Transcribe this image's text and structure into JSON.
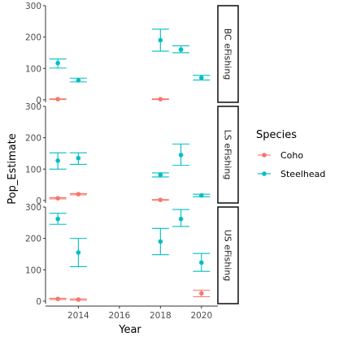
{
  "chart_data": {
    "type": "scatter",
    "subtype": "point-with-errorbars, faceted",
    "xlabel": "Year",
    "ylabel": "Pop_Estimate",
    "xlim": [
      2012.4,
      2020.8
    ],
    "ylim": [
      -8,
      300
    ],
    "x_ticks": [
      2014,
      2016,
      2018,
      2020
    ],
    "y_ticks": [
      0,
      100,
      200,
      300
    ],
    "grid": false,
    "legend": {
      "title": "Species",
      "placement": "right",
      "entries": [
        {
          "name": "Coho",
          "color": "#F8766D"
        },
        {
          "name": "Steelhead",
          "color": "#00BFC4"
        }
      ]
    },
    "panels": [
      {
        "label": "BC eFishing",
        "series": [
          {
            "name": "Coho",
            "points": [
              {
                "x": 2013,
                "y": 2,
                "lo": 1,
                "hi": 3
              },
              {
                "x": 2018,
                "y": 2,
                "lo": 1,
                "hi": 3
              }
            ]
          },
          {
            "name": "Steelhead",
            "points": [
              {
                "x": 2013,
                "y": 117,
                "lo": 101,
                "hi": 130
              },
              {
                "x": 2014,
                "y": 62,
                "lo": 57,
                "hi": 69
              },
              {
                "x": 2018,
                "y": 190,
                "lo": 155,
                "hi": 225
              },
              {
                "x": 2019,
                "y": 160,
                "lo": 150,
                "hi": 172
              },
              {
                "x": 2020,
                "y": 70,
                "lo": 63,
                "hi": 78
              }
            ]
          }
        ]
      },
      {
        "label": "LS eFishing",
        "series": [
          {
            "name": "Coho",
            "points": [
              {
                "x": 2013,
                "y": 7,
                "lo": 5,
                "hi": 9
              },
              {
                "x": 2014,
                "y": 20,
                "lo": 18,
                "hi": 22
              },
              {
                "x": 2018,
                "y": 2,
                "lo": 1,
                "hi": 3
              }
            ]
          },
          {
            "name": "Steelhead",
            "points": [
              {
                "x": 2013,
                "y": 127,
                "lo": 100,
                "hi": 152
              },
              {
                "x": 2014,
                "y": 135,
                "lo": 115,
                "hi": 152
              },
              {
                "x": 2018,
                "y": 82,
                "lo": 75,
                "hi": 88
              },
              {
                "x": 2019,
                "y": 145,
                "lo": 112,
                "hi": 180
              },
              {
                "x": 2020,
                "y": 16,
                "lo": 12,
                "hi": 20
              }
            ]
          }
        ]
      },
      {
        "label": "US eFishing",
        "series": [
          {
            "name": "Coho",
            "points": [
              {
                "x": 2013,
                "y": 7,
                "lo": 5,
                "hi": 9
              },
              {
                "x": 2014,
                "y": 5,
                "lo": 3,
                "hi": 7
              },
              {
                "x": 2020,
                "y": 25,
                "lo": 14,
                "hi": 35
              }
            ]
          },
          {
            "name": "Steelhead",
            "points": [
              {
                "x": 2013,
                "y": 262,
                "lo": 245,
                "hi": 280
              },
              {
                "x": 2014,
                "y": 155,
                "lo": 110,
                "hi": 200
              },
              {
                "x": 2018,
                "y": 190,
                "lo": 148,
                "hi": 232
              },
              {
                "x": 2019,
                "y": 262,
                "lo": 238,
                "hi": 292
              },
              {
                "x": 2020,
                "y": 123,
                "lo": 95,
                "hi": 152
              }
            ]
          }
        ]
      }
    ]
  }
}
